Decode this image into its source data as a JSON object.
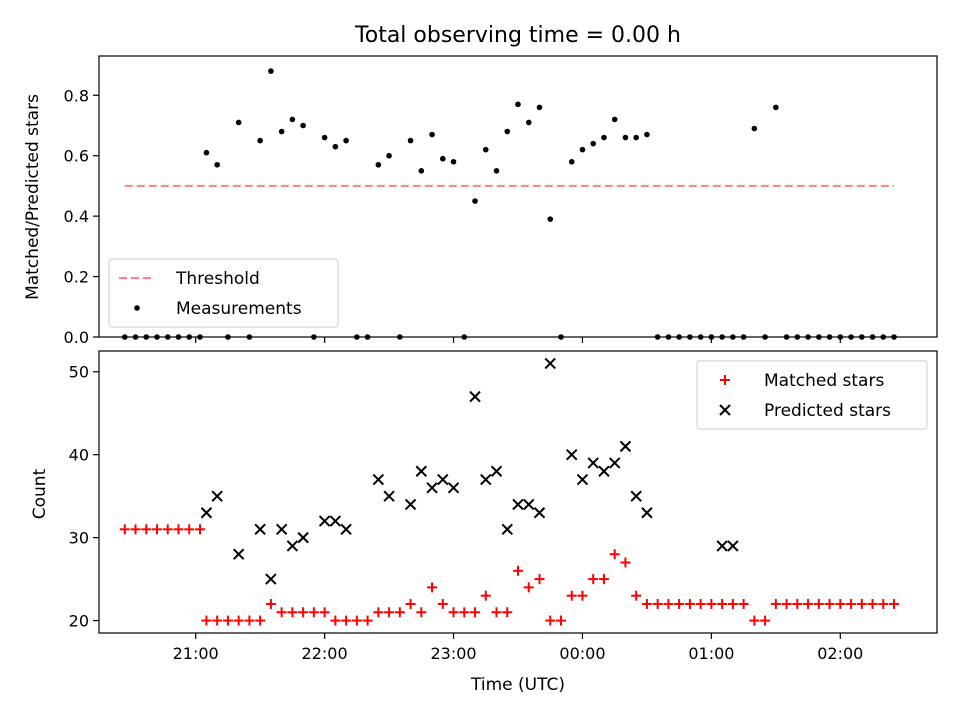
{
  "chart_data": [
    {
      "type": "scatter",
      "title": "Total observing time = 0.00 h",
      "ylabel": "Matched/Predicted stars",
      "xlabel": "",
      "ylim": [
        0,
        0.93
      ],
      "yticks": [
        "0.0",
        "0.2",
        "0.4",
        "0.6",
        "0.8"
      ],
      "xlim": [
        "20:15",
        "02:45"
      ],
      "xticks": [
        "21:00",
        "22:00",
        "23:00",
        "00:00",
        "01:00",
        "02:00"
      ],
      "legend": {
        "placement": "lower-left",
        "entries": [
          "Threshold",
          "Measurements"
        ]
      },
      "series": [
        {
          "name": "Threshold",
          "style": "dashed-line",
          "color": "#ff8080",
          "x": [
            "20:27",
            "02:25"
          ],
          "y": [
            0.5,
            0.5
          ]
        },
        {
          "name": "Measurements",
          "style": "dot",
          "color": "#000000",
          "x": [
            "20:27",
            "20:32",
            "20:37",
            "20:42",
            "20:47",
            "20:52",
            "20:57",
            "21:02",
            "21:05",
            "21:10",
            "21:15",
            "21:20",
            "21:25",
            "21:30",
            "21:35",
            "21:40",
            "21:45",
            "21:50",
            "21:55",
            "22:00",
            "22:05",
            "22:10",
            "22:15",
            "22:20",
            "22:25",
            "22:30",
            "22:35",
            "22:40",
            "22:45",
            "22:50",
            "22:55",
            "23:00",
            "23:05",
            "23:10",
            "23:15",
            "23:20",
            "23:25",
            "23:30",
            "23:35",
            "23:40",
            "23:45",
            "23:50",
            "23:55",
            "00:00",
            "00:05",
            "00:10",
            "00:15",
            "00:20",
            "00:25",
            "00:30",
            "00:35",
            "00:40",
            "00:45",
            "00:50",
            "00:55",
            "01:00",
            "01:05",
            "01:10",
            "01:15",
            "01:20",
            "01:25",
            "01:30",
            "01:35",
            "01:40",
            "01:45",
            "01:50",
            "01:55",
            "02:00",
            "02:05",
            "02:10",
            "02:15",
            "02:20",
            "02:25"
          ],
          "y": [
            0.0,
            0.0,
            0.0,
            0.0,
            0.0,
            0.0,
            0.0,
            0.0,
            0.61,
            0.57,
            0.0,
            0.71,
            0.0,
            0.65,
            0.88,
            0.68,
            0.72,
            0.7,
            0.0,
            0.66,
            0.63,
            0.65,
            0.0,
            0.0,
            0.57,
            0.6,
            0.0,
            0.65,
            0.55,
            0.67,
            0.59,
            0.58,
            0.0,
            0.45,
            0.62,
            0.55,
            0.68,
            0.77,
            0.71,
            0.76,
            0.39,
            0.0,
            0.58,
            0.62,
            0.64,
            0.66,
            0.72,
            0.66,
            0.66,
            0.67,
            0.0,
            0.0,
            0.0,
            0.0,
            0.0,
            0.0,
            0.0,
            0.0,
            0.0,
            0.69,
            0.0,
            0.76,
            0.0,
            0.0,
            0.0,
            0.0,
            0.0,
            0.0,
            0.0,
            0.0,
            0.0,
            0.0,
            0.0
          ]
        }
      ]
    },
    {
      "type": "scatter",
      "title": "",
      "ylabel": "Count",
      "xlabel": "Time (UTC)",
      "ylim": [
        18.5,
        52.5
      ],
      "yticks": [
        "20",
        "30",
        "40",
        "50"
      ],
      "xlim": [
        "20:15",
        "02:45"
      ],
      "xticks": [
        "21:00",
        "22:00",
        "23:00",
        "00:00",
        "01:00",
        "02:00"
      ],
      "legend": {
        "placement": "upper-right",
        "entries": [
          "Matched stars",
          "Predicted stars"
        ]
      },
      "series": [
        {
          "name": "Matched stars",
          "marker": "plus",
          "color": "#ff0000",
          "x": [
            "20:27",
            "20:32",
            "20:37",
            "20:42",
            "20:47",
            "20:52",
            "20:57",
            "21:02",
            "21:05",
            "21:10",
            "21:15",
            "21:20",
            "21:25",
            "21:30",
            "21:35",
            "21:40",
            "21:45",
            "21:50",
            "21:55",
            "22:00",
            "22:05",
            "22:10",
            "22:15",
            "22:20",
            "22:25",
            "22:30",
            "22:35",
            "22:40",
            "22:45",
            "22:50",
            "22:55",
            "23:00",
            "23:05",
            "23:10",
            "23:15",
            "23:20",
            "23:25",
            "23:30",
            "23:35",
            "23:40",
            "23:45",
            "23:50",
            "23:55",
            "00:00",
            "00:05",
            "00:10",
            "00:15",
            "00:20",
            "00:25",
            "00:30",
            "00:35",
            "00:40",
            "00:45",
            "00:50",
            "00:55",
            "01:00",
            "01:05",
            "01:10",
            "01:15",
            "01:20",
            "01:25",
            "01:30",
            "01:35",
            "01:40",
            "01:45",
            "01:50",
            "01:55",
            "02:00",
            "02:05",
            "02:10",
            "02:15",
            "02:20",
            "02:25"
          ],
          "y": [
            31,
            31,
            31,
            31,
            31,
            31,
            31,
            31,
            20,
            20,
            20,
            20,
            20,
            20,
            22,
            21,
            21,
            21,
            21,
            21,
            20,
            20,
            20,
            20,
            21,
            21,
            21,
            22,
            21,
            24,
            22,
            21,
            21,
            21,
            23,
            21,
            21,
            26,
            24,
            25,
            20,
            20,
            23,
            23,
            25,
            25,
            28,
            27,
            23,
            22,
            22,
            22,
            22,
            22,
            22,
            22,
            22,
            22,
            22,
            20,
            20,
            22,
            22,
            22,
            22,
            22,
            22,
            22,
            22,
            22,
            22,
            22,
            22
          ]
        },
        {
          "name": "Predicted stars",
          "marker": "x",
          "color": "#000000",
          "x": [
            "21:05",
            "21:10",
            "21:20",
            "21:30",
            "21:35",
            "21:40",
            "21:45",
            "21:50",
            "22:00",
            "22:05",
            "22:10",
            "22:25",
            "22:30",
            "22:40",
            "22:45",
            "22:50",
            "22:55",
            "23:00",
            "23:10",
            "23:15",
            "23:20",
            "23:25",
            "23:30",
            "23:35",
            "23:40",
            "23:45",
            "23:55",
            "00:00",
            "00:05",
            "00:10",
            "00:15",
            "00:20",
            "00:25",
            "00:30",
            "01:05",
            "01:10"
          ],
          "y": [
            33,
            35,
            28,
            31,
            25,
            31,
            29,
            30,
            32,
            32,
            31,
            37,
            35,
            34,
            38,
            36,
            37,
            36,
            47,
            37,
            38,
            31,
            34,
            34,
            33,
            51,
            40,
            37,
            39,
            38,
            39,
            41,
            35,
            33,
            29,
            29
          ]
        }
      ]
    }
  ]
}
